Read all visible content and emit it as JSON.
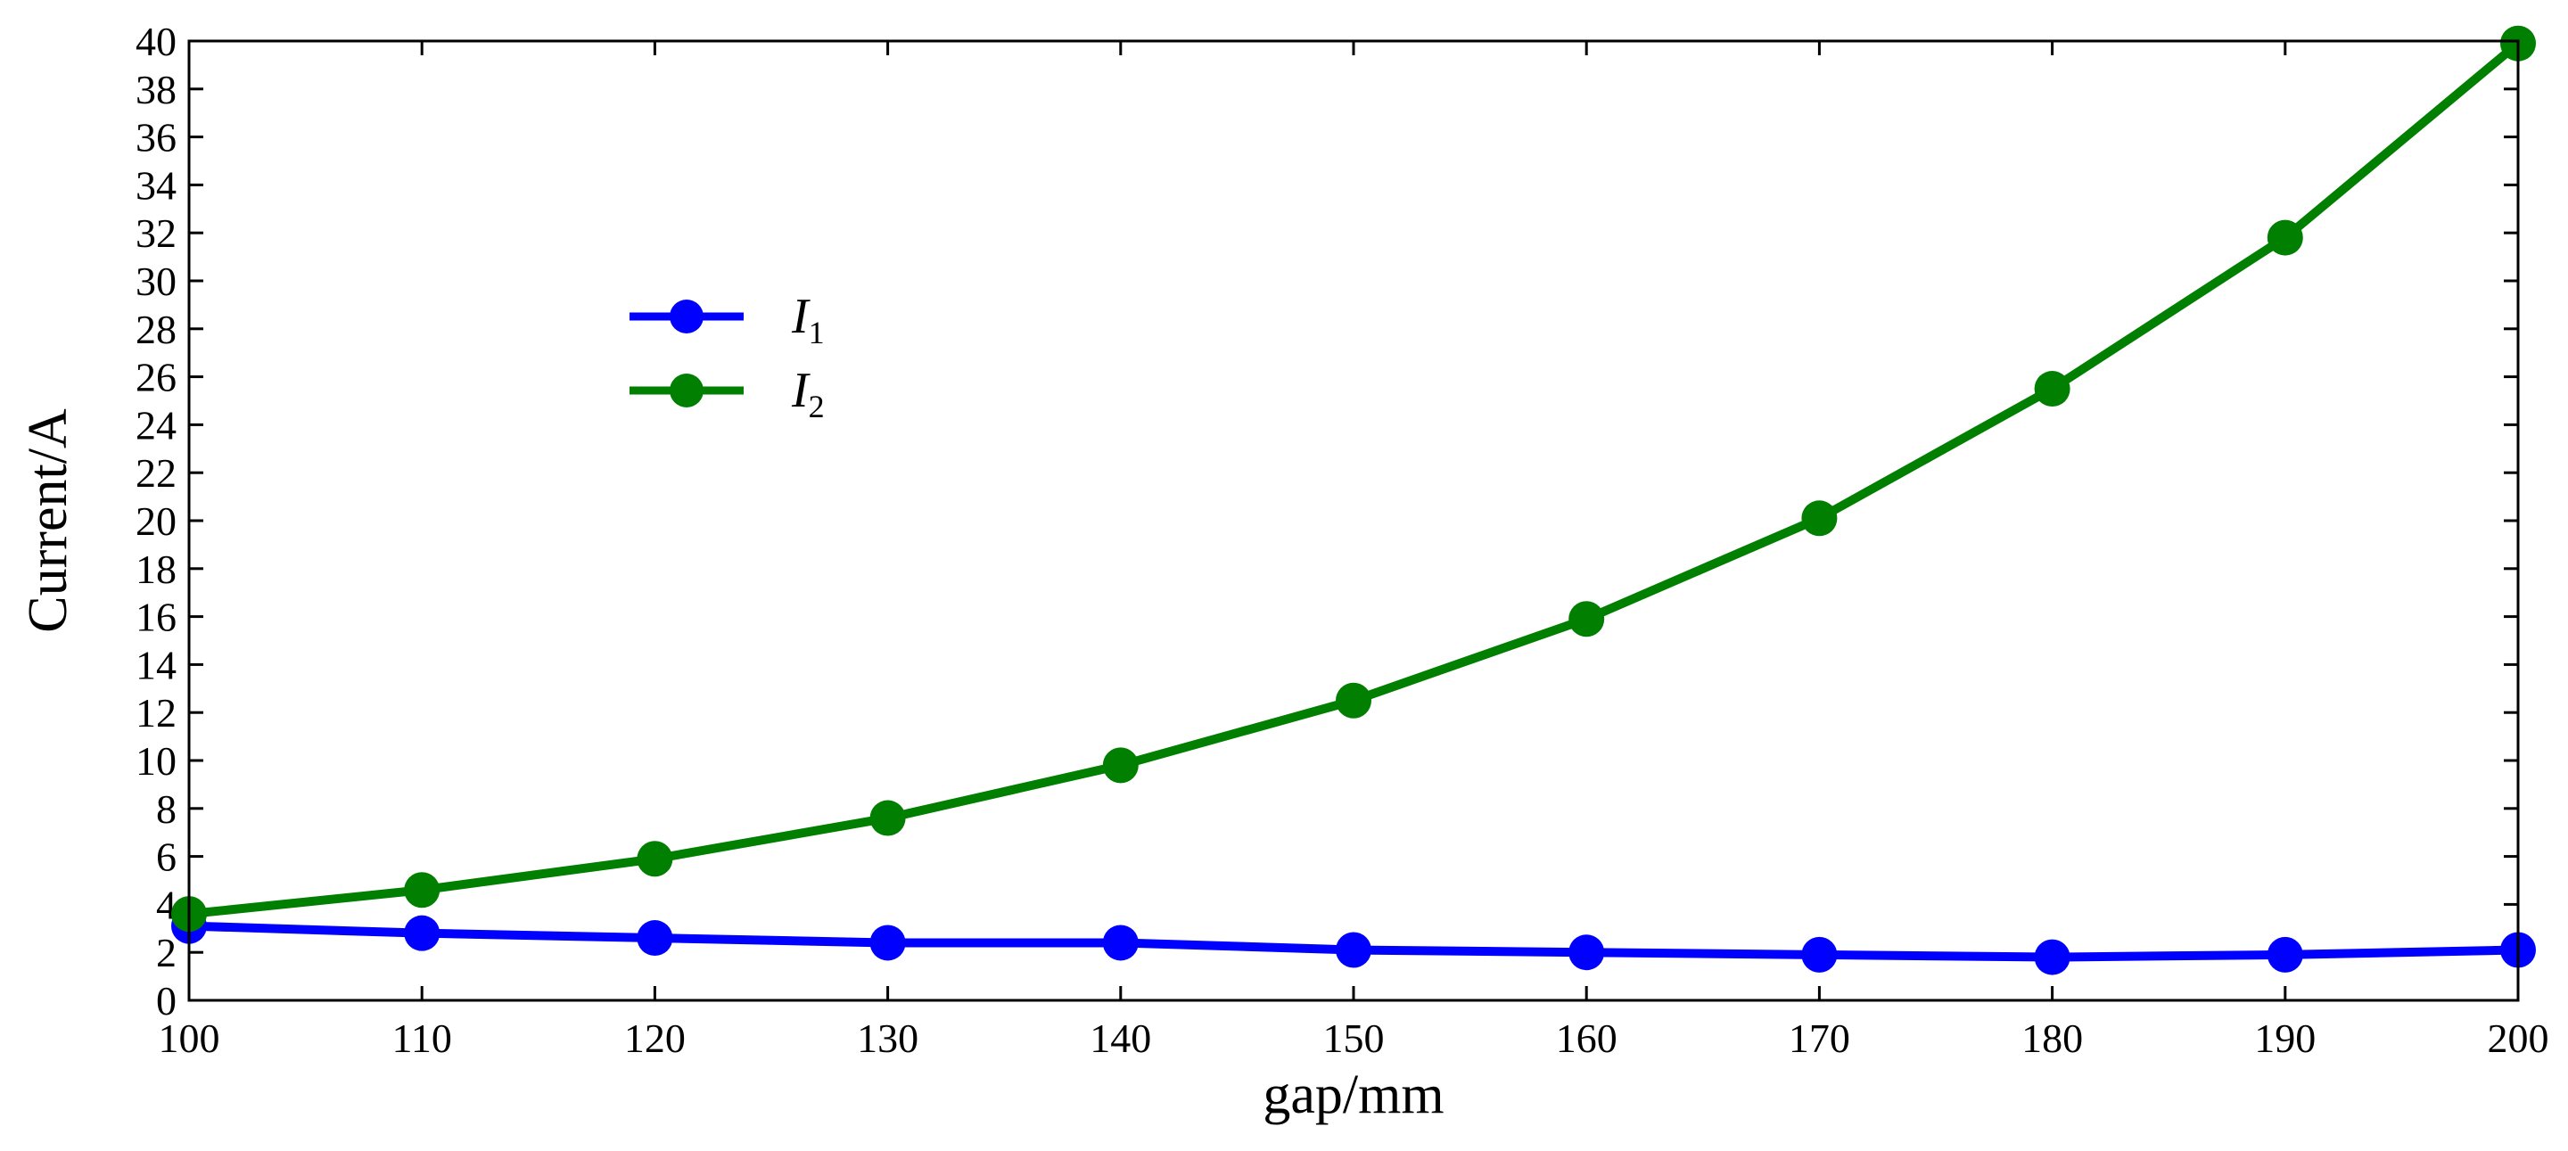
{
  "chart_data": {
    "type": "line",
    "title": "",
    "xlabel": "gap/mm",
    "ylabel": "Current/A",
    "x": [
      100,
      110,
      120,
      130,
      140,
      150,
      160,
      170,
      180,
      190,
      200
    ],
    "xlim": [
      100,
      200
    ],
    "ylim": [
      0,
      40
    ],
    "xticks": [
      "100",
      "110",
      "120",
      "130",
      "140",
      "150",
      "160",
      "170",
      "180",
      "190",
      "200"
    ],
    "yticks": [
      "0",
      "2",
      "4",
      "6",
      "8",
      "10",
      "12",
      "14",
      "16",
      "18",
      "20",
      "22",
      "24",
      "26",
      "28",
      "30",
      "32",
      "34",
      "36",
      "38",
      "40"
    ],
    "grid": false,
    "legend_position": "upper-left",
    "series": [
      {
        "name_main": "I",
        "name_sub": "1",
        "color": "#0000ff",
        "values": [
          3.1,
          2.8,
          2.6,
          2.4,
          2.4,
          2.1,
          2.0,
          1.9,
          1.8,
          1.9,
          2.1
        ]
      },
      {
        "name_main": "I",
        "name_sub": "2",
        "color": "#007f00",
        "values": [
          3.6,
          4.6,
          5.9,
          7.6,
          9.8,
          12.5,
          15.9,
          20.1,
          25.5,
          31.8,
          39.9
        ]
      }
    ]
  }
}
